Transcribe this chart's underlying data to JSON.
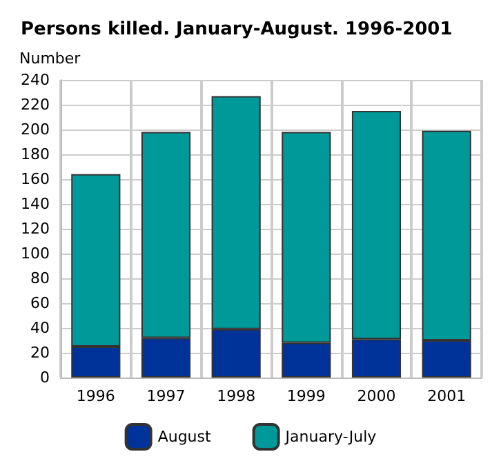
{
  "chart_data": {
    "type": "bar",
    "title": "Persons killed. January-August. 1996-2001",
    "ylabel": "Number",
    "categories": [
      "1996",
      "1997",
      "1998",
      "1999",
      "2000",
      "2001"
    ],
    "stacked": true,
    "series": [
      {
        "name": "August",
        "color": "#003399",
        "values": [
          25,
          32,
          39,
          28,
          31,
          30
        ]
      },
      {
        "name": "January-July",
        "color": "#009999",
        "values": [
          139,
          166,
          188,
          170,
          184,
          169
        ]
      }
    ],
    "ylim": [
      0,
      240
    ],
    "yticks": [
      0,
      20,
      40,
      60,
      80,
      100,
      120,
      140,
      160,
      180,
      200,
      220,
      240
    ],
    "grid": true,
    "legend": "bottom"
  }
}
